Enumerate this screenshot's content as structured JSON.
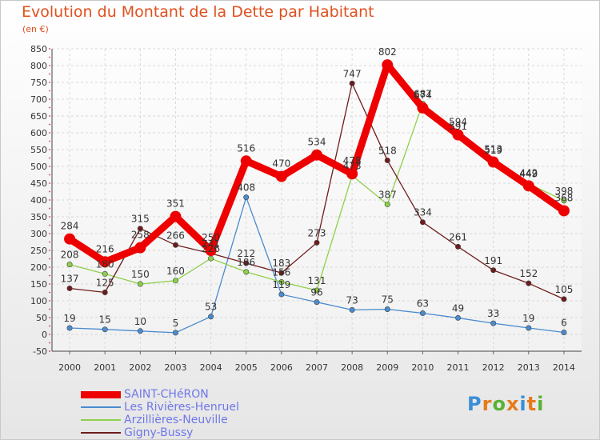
{
  "header": {
    "title": "Evolution du Montant de la Dette par Habitant",
    "unit": "(en €)"
  },
  "logo": {
    "text": "Proxiti",
    "letter_colors": [
      "#3a8fd8",
      "#e87a1a",
      "#59b233",
      "#e87a1a",
      "#3a8fd8",
      "#e87a1a",
      "#59b233"
    ]
  },
  "chart_data": {
    "type": "line",
    "title": "Evolution du Montant de la Dette par Habitant",
    "subtitle": "(en €)",
    "xlabel": "",
    "ylabel": "",
    "x": [
      2000,
      2001,
      2002,
      2003,
      2004,
      2005,
      2006,
      2007,
      2008,
      2009,
      2010,
      2011,
      2012,
      2013,
      2014
    ],
    "ylim": [
      -50,
      850
    ],
    "yticks": [
      -50,
      0,
      50,
      100,
      150,
      200,
      250,
      300,
      350,
      400,
      450,
      500,
      550,
      600,
      650,
      700,
      750,
      800,
      850
    ],
    "grid": true,
    "legend_position": "bottom-left",
    "series": [
      {
        "name": "SAINT-CHéRON",
        "color": "#ee0000",
        "values": [
          284,
          216,
          258,
          351,
          250,
          516,
          470,
          534,
          478,
          802,
          674,
          594,
          513,
          442,
          368
        ],
        "labels": [
          "284",
          "216",
          "258",
          "351",
          "250",
          "516",
          "470",
          "534",
          "478",
          "802",
          "674",
          "594",
          "513",
          "442",
          "368"
        ]
      },
      {
        "name": "Les Rivières-Henruel",
        "color": "#4a8ccf",
        "values": [
          19,
          15,
          10,
          5,
          53,
          408,
          119,
          96,
          73,
          75,
          63,
          49,
          33,
          19,
          6
        ],
        "labels": [
          "19",
          "15",
          "10",
          "5",
          "53",
          "408",
          "119",
          "96",
          "73",
          "75",
          "63",
          "49",
          "33",
          "19",
          "6"
        ]
      },
      {
        "name": "Arzillières-Neuville",
        "color": "#8ed04a",
        "values": [
          208,
          180,
          150,
          160,
          226,
          186,
          156,
          131,
          473,
          387,
          687,
          591,
          519,
          449,
          398
        ],
        "labels": [
          "208",
          "180",
          "150",
          "160",
          "226",
          "186",
          "156",
          "131",
          "473",
          "387",
          "687",
          "591",
          "519",
          "449",
          "398"
        ]
      },
      {
        "name": "Gigny-Bussy",
        "color": "#6e1c1c",
        "values": [
          137,
          125,
          315,
          266,
          241,
          212,
          183,
          273,
          747,
          518,
          334,
          261,
          191,
          152,
          105
        ],
        "labels": [
          "137",
          "125",
          "315",
          "266",
          "241",
          "212",
          "183",
          "273",
          "747",
          "518",
          "334",
          "261",
          "191",
          "152",
          "105"
        ]
      }
    ]
  }
}
